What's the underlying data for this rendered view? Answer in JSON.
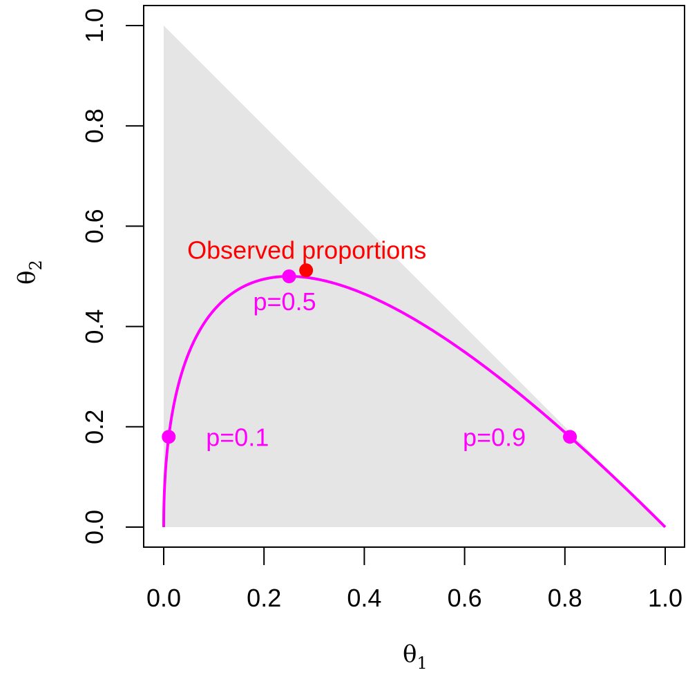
{
  "chart_data": {
    "type": "line",
    "xlabel": "θ",
    "xlabel_sub": "1",
    "ylabel": "θ",
    "ylabel_sub": "2",
    "xlim": [
      0,
      1
    ],
    "ylim": [
      0,
      1
    ],
    "xticks": [
      0.0,
      0.2,
      0.4,
      0.6,
      0.8,
      1.0
    ],
    "yticks": [
      0.0,
      0.2,
      0.4,
      0.6,
      0.8,
      1.0
    ],
    "xtick_labels": [
      "0.0",
      "0.2",
      "0.4",
      "0.6",
      "0.8",
      "1.0"
    ],
    "ytick_labels": [
      "0.0",
      "0.2",
      "0.4",
      "0.6",
      "0.8",
      "1.0"
    ],
    "grid": false,
    "region": {
      "shape": "simplex triangle",
      "vertices": [
        [
          0,
          0
        ],
        [
          1,
          0
        ],
        [
          0,
          1
        ]
      ],
      "color": "#e5e5e5"
    },
    "curve": {
      "color": "#ff00ff",
      "description": "Hardy-Weinberg curve: θ1 = p², θ2 = 2p(1−p), p from 0 to 1"
    },
    "labeled_points": [
      {
        "label": "p=0.1",
        "x": 0.01,
        "y": 0.18,
        "color": "#ff00ff"
      },
      {
        "label": "p=0.5",
        "x": 0.25,
        "y": 0.5,
        "color": "#ff00ff"
      },
      {
        "label": "p=0.9",
        "x": 0.81,
        "y": 0.18,
        "color": "#ff00ff"
      }
    ],
    "observed": {
      "label": "Observed proportions",
      "x": 0.284,
      "y": 0.512,
      "color": "#ff0000"
    }
  }
}
